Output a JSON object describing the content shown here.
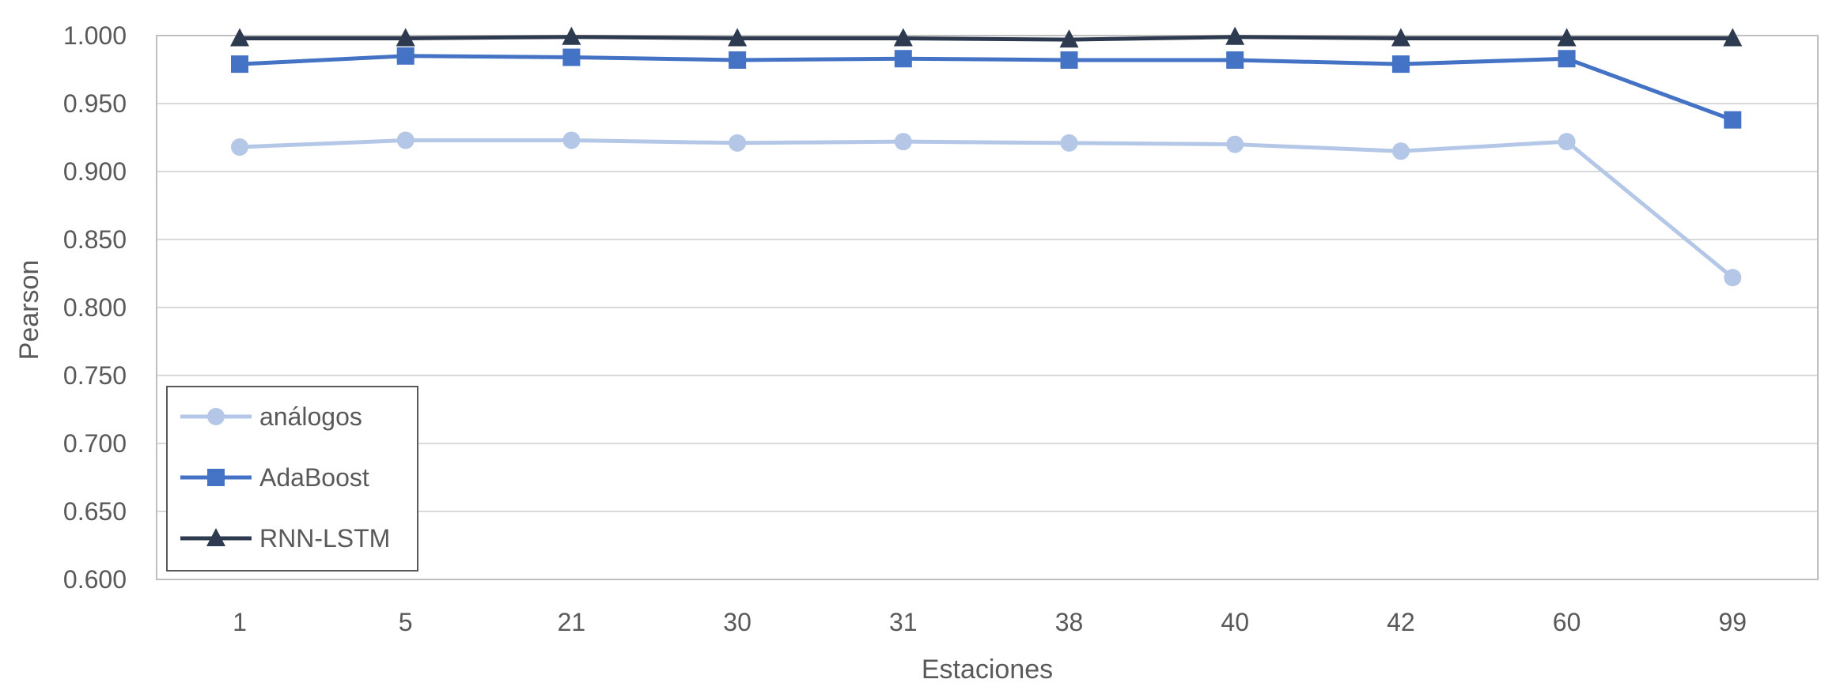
{
  "chart_data": {
    "type": "line",
    "xlabel": "Estaciones",
    "ylabel": "Pearson",
    "categories": [
      "1",
      "5",
      "21",
      "30",
      "31",
      "38",
      "40",
      "42",
      "60",
      "99"
    ],
    "ylim": [
      0.6,
      1.0
    ],
    "yticks": [
      "0.600",
      "0.650",
      "0.700",
      "0.750",
      "0.800",
      "0.850",
      "0.900",
      "0.950",
      "1.000"
    ],
    "grid": true,
    "legend_position": "bottom-left",
    "series": [
      {
        "name": "análogos",
        "marker": "circle",
        "color": "#b4c7e7",
        "values": [
          0.918,
          0.923,
          0.923,
          0.921,
          0.922,
          0.921,
          0.92,
          0.915,
          0.922,
          0.822
        ]
      },
      {
        "name": "AdaBoost",
        "marker": "square",
        "color": "#4472c4",
        "values": [
          0.979,
          0.985,
          0.984,
          0.982,
          0.983,
          0.982,
          0.982,
          0.979,
          0.983,
          0.938
        ]
      },
      {
        "name": "RNN-LSTM",
        "marker": "triangle",
        "color": "#2e3a4f",
        "values": [
          0.998,
          0.998,
          0.999,
          0.998,
          0.998,
          0.997,
          0.999,
          0.998,
          0.998,
          0.998
        ]
      }
    ]
  }
}
